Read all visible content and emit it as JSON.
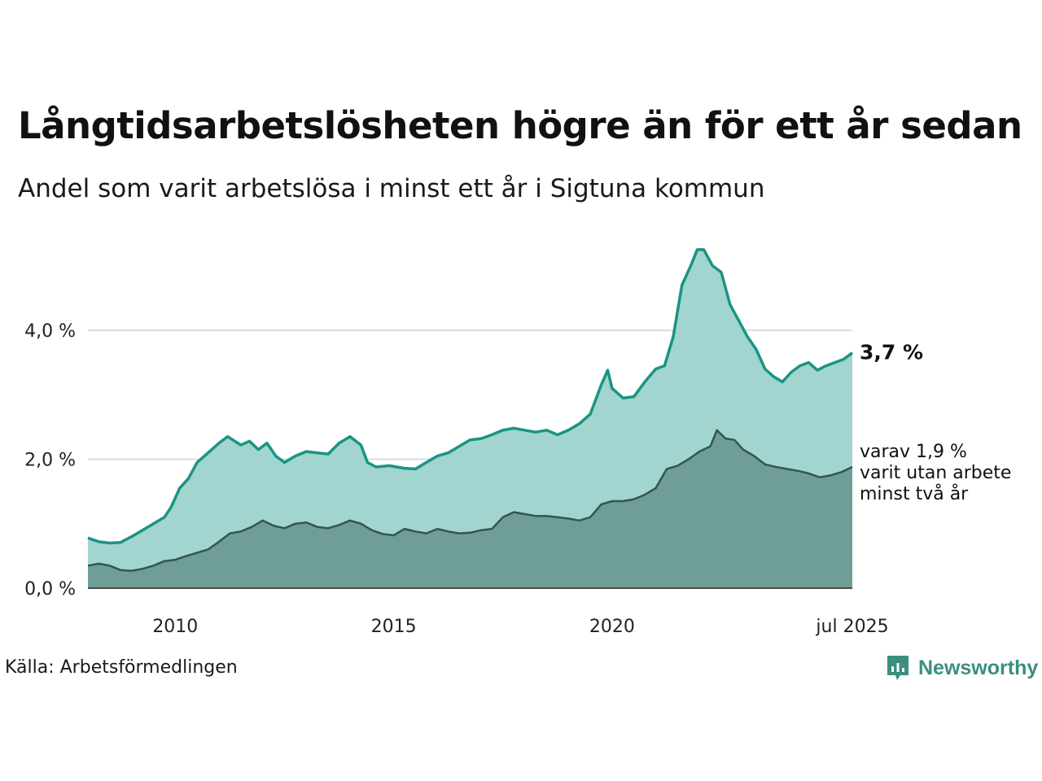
{
  "title": "Långtidsarbetslösheten högre än för ett år sedan",
  "subtitle": "Andel som varit arbetslösa i minst ett år i Sigtuna kommun",
  "source": "Källa: Arbetsförmedlingen",
  "brand": "Newsworthy",
  "colors": {
    "area1": "#a2d5cf",
    "line1": "#1a9483",
    "area2": "#6f9e96",
    "line2": "#35554f",
    "grid": "#dddddd",
    "brand": "#3a8f7e"
  },
  "chart_data": {
    "type": "area",
    "ylim": [
      0,
      5.4
    ],
    "yticks": [
      {
        "value": 0,
        "label": "0,0 %"
      },
      {
        "value": 2,
        "label": "2,0 %"
      },
      {
        "value": 4,
        "label": "4,0 %"
      }
    ],
    "xticks": [
      {
        "value": 2010,
        "label": "2010"
      },
      {
        "value": 2015,
        "label": "2015"
      },
      {
        "value": 2020,
        "label": "2020"
      },
      {
        "value": 2025.5,
        "label": "jul 2025"
      }
    ],
    "series": [
      {
        "key": "one_year",
        "end_label": "3,7 %",
        "points": [
          [
            2008.0,
            0.78
          ],
          [
            2008.25,
            0.72
          ],
          [
            2008.5,
            0.7
          ],
          [
            2008.75,
            0.71
          ],
          [
            2009.0,
            0.8
          ],
          [
            2009.25,
            0.9
          ],
          [
            2009.5,
            1.0
          ],
          [
            2009.75,
            1.1
          ],
          [
            2009.9,
            1.25
          ],
          [
            2010.1,
            1.55
          ],
          [
            2010.3,
            1.7
          ],
          [
            2010.5,
            1.95
          ],
          [
            2010.75,
            2.1
          ],
          [
            2011.0,
            2.25
          ],
          [
            2011.2,
            2.35
          ],
          [
            2011.5,
            2.22
          ],
          [
            2011.7,
            2.28
          ],
          [
            2011.9,
            2.15
          ],
          [
            2012.1,
            2.25
          ],
          [
            2012.3,
            2.05
          ],
          [
            2012.5,
            1.95
          ],
          [
            2012.75,
            2.05
          ],
          [
            2013.0,
            2.12
          ],
          [
            2013.25,
            2.1
          ],
          [
            2013.5,
            2.08
          ],
          [
            2013.75,
            2.25
          ],
          [
            2014.0,
            2.35
          ],
          [
            2014.25,
            2.22
          ],
          [
            2014.4,
            1.95
          ],
          [
            2014.6,
            1.88
          ],
          [
            2014.9,
            1.9
          ],
          [
            2015.25,
            1.86
          ],
          [
            2015.5,
            1.85
          ],
          [
            2015.75,
            1.95
          ],
          [
            2016.0,
            2.05
          ],
          [
            2016.25,
            2.1
          ],
          [
            2016.5,
            2.2
          ],
          [
            2016.75,
            2.3
          ],
          [
            2017.0,
            2.32
          ],
          [
            2017.25,
            2.38
          ],
          [
            2017.5,
            2.45
          ],
          [
            2017.75,
            2.48
          ],
          [
            2018.0,
            2.45
          ],
          [
            2018.25,
            2.42
          ],
          [
            2018.5,
            2.45
          ],
          [
            2018.75,
            2.38
          ],
          [
            2019.0,
            2.45
          ],
          [
            2019.25,
            2.55
          ],
          [
            2019.5,
            2.7
          ],
          [
            2019.75,
            3.15
          ],
          [
            2019.9,
            3.38
          ],
          [
            2020.0,
            3.1
          ],
          [
            2020.25,
            2.95
          ],
          [
            2020.5,
            2.97
          ],
          [
            2020.75,
            3.2
          ],
          [
            2021.0,
            3.4
          ],
          [
            2021.2,
            3.45
          ],
          [
            2021.4,
            3.9
          ],
          [
            2021.6,
            4.7
          ],
          [
            2021.8,
            5.0
          ],
          [
            2021.95,
            5.25
          ],
          [
            2022.1,
            5.25
          ],
          [
            2022.3,
            5.0
          ],
          [
            2022.5,
            4.9
          ],
          [
            2022.7,
            4.4
          ],
          [
            2022.9,
            4.15
          ],
          [
            2023.1,
            3.9
          ],
          [
            2023.3,
            3.7
          ],
          [
            2023.5,
            3.4
          ],
          [
            2023.7,
            3.28
          ],
          [
            2023.9,
            3.2
          ],
          [
            2024.1,
            3.35
          ],
          [
            2024.3,
            3.45
          ],
          [
            2024.5,
            3.5
          ],
          [
            2024.7,
            3.38
          ],
          [
            2024.9,
            3.45
          ],
          [
            2025.1,
            3.5
          ],
          [
            2025.3,
            3.55
          ],
          [
            2025.5,
            3.65
          ]
        ]
      },
      {
        "key": "two_year",
        "end_label": "varav 1,9 %\nvarit utan arbete\nminst två år",
        "points": [
          [
            2008.0,
            0.35
          ],
          [
            2008.25,
            0.38
          ],
          [
            2008.5,
            0.35
          ],
          [
            2008.75,
            0.28
          ],
          [
            2009.0,
            0.27
          ],
          [
            2009.25,
            0.3
          ],
          [
            2009.5,
            0.35
          ],
          [
            2009.75,
            0.42
          ],
          [
            2010.0,
            0.44
          ],
          [
            2010.25,
            0.5
          ],
          [
            2010.5,
            0.55
          ],
          [
            2010.75,
            0.6
          ],
          [
            2011.0,
            0.72
          ],
          [
            2011.25,
            0.85
          ],
          [
            2011.5,
            0.88
          ],
          [
            2011.75,
            0.95
          ],
          [
            2012.0,
            1.05
          ],
          [
            2012.25,
            0.97
          ],
          [
            2012.5,
            0.93
          ],
          [
            2012.75,
            1.0
          ],
          [
            2013.0,
            1.02
          ],
          [
            2013.25,
            0.95
          ],
          [
            2013.5,
            0.93
          ],
          [
            2013.75,
            0.98
          ],
          [
            2014.0,
            1.05
          ],
          [
            2014.25,
            1.0
          ],
          [
            2014.5,
            0.9
          ],
          [
            2014.75,
            0.84
          ],
          [
            2015.0,
            0.82
          ],
          [
            2015.25,
            0.92
          ],
          [
            2015.5,
            0.88
          ],
          [
            2015.75,
            0.85
          ],
          [
            2016.0,
            0.92
          ],
          [
            2016.25,
            0.88
          ],
          [
            2016.5,
            0.85
          ],
          [
            2016.75,
            0.86
          ],
          [
            2017.0,
            0.9
          ],
          [
            2017.25,
            0.92
          ],
          [
            2017.5,
            1.1
          ],
          [
            2017.75,
            1.18
          ],
          [
            2018.0,
            1.15
          ],
          [
            2018.25,
            1.12
          ],
          [
            2018.5,
            1.12
          ],
          [
            2018.75,
            1.1
          ],
          [
            2019.0,
            1.08
          ],
          [
            2019.25,
            1.05
          ],
          [
            2019.5,
            1.1
          ],
          [
            2019.75,
            1.3
          ],
          [
            2020.0,
            1.35
          ],
          [
            2020.25,
            1.35
          ],
          [
            2020.5,
            1.38
          ],
          [
            2020.75,
            1.45
          ],
          [
            2021.0,
            1.55
          ],
          [
            2021.25,
            1.85
          ],
          [
            2021.5,
            1.9
          ],
          [
            2021.75,
            2.0
          ],
          [
            2022.0,
            2.12
          ],
          [
            2022.25,
            2.2
          ],
          [
            2022.4,
            2.45
          ],
          [
            2022.6,
            2.32
          ],
          [
            2022.8,
            2.3
          ],
          [
            2023.0,
            2.15
          ],
          [
            2023.25,
            2.05
          ],
          [
            2023.5,
            1.92
          ],
          [
            2023.75,
            1.88
          ],
          [
            2024.0,
            1.85
          ],
          [
            2024.25,
            1.82
          ],
          [
            2024.5,
            1.78
          ],
          [
            2024.75,
            1.72
          ],
          [
            2025.0,
            1.75
          ],
          [
            2025.25,
            1.8
          ],
          [
            2025.5,
            1.88
          ]
        ]
      }
    ]
  }
}
